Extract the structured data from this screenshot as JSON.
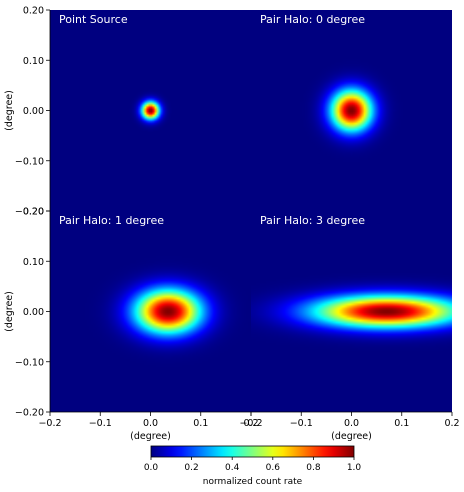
{
  "chart_data": {
    "type": "heatmap",
    "colormap": "jet",
    "grid": false,
    "panels": [
      {
        "title": "Point Source",
        "center_x": 0.0,
        "center_y": 0.0,
        "sigma_x": 0.012,
        "sigma_y": 0.012
      },
      {
        "title": "Pair Halo: 0 degree",
        "center_x": 0.0,
        "center_y": 0.0,
        "sigma_x": 0.028,
        "sigma_y": 0.028
      },
      {
        "title": "Pair Halo: 1 degree",
        "center_x": 0.035,
        "center_y": 0.0,
        "sigma_x": 0.045,
        "sigma_y": 0.03
      },
      {
        "title": "Pair Halo: 3 degree",
        "center_x": 0.07,
        "center_y": 0.0,
        "sigma_x": 0.1,
        "sigma_y": 0.022
      }
    ],
    "xlim": [
      -0.2,
      0.2
    ],
    "ylim": [
      -0.2,
      0.2
    ],
    "x_ticks": [
      "−0.2",
      "−0.1",
      "0.0",
      "0.1",
      "0.2"
    ],
    "y_ticks": [
      "0.20",
      "0.10",
      "0.00",
      "−0.10",
      "−0.20"
    ],
    "x_tick_values": [
      -0.2,
      -0.1,
      0.0,
      0.1,
      0.2
    ],
    "y_tick_values": [
      0.2,
      0.1,
      0.0,
      -0.1,
      -0.2
    ],
    "xlabel": "(degree)",
    "ylabel": "(degree)",
    "colorbar": {
      "label": "normalized count rate",
      "range": [
        0,
        1
      ],
      "ticks": [
        "0.0",
        "0.2",
        "0.4",
        "0.6",
        "0.8",
        "1.0"
      ],
      "tick_values": [
        0.0,
        0.2,
        0.4,
        0.6,
        0.8,
        1.0
      ]
    }
  }
}
